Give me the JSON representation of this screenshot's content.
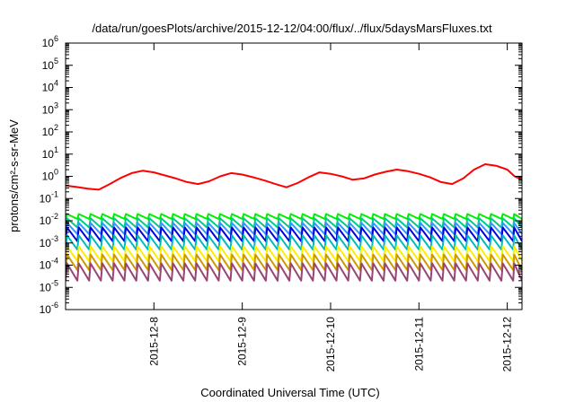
{
  "chart_data": {
    "type": "line",
    "title": "/data/run/goesPlots/archive/2015-12-12/04:00/flux/../flux/5daysMarsFluxes.txt",
    "xlabel": "Coordinated Universal Time (UTC)",
    "ylabel": "protons/cm²-s-sr-MeV",
    "y_scale": "log",
    "ylim": [
      1e-06,
      1000000.0
    ],
    "x_range": [
      "2015-12-07 00:00",
      "2015-12-12 04:00"
    ],
    "y_ticks": [
      {
        "value": 1e-06,
        "base": "10",
        "exp": "-6"
      },
      {
        "value": 1e-05,
        "base": "10",
        "exp": "-5"
      },
      {
        "value": 0.0001,
        "base": "10",
        "exp": "-4"
      },
      {
        "value": 0.001,
        "base": "10",
        "exp": "-3"
      },
      {
        "value": 0.01,
        "base": "10",
        "exp": "-2"
      },
      {
        "value": 0.1,
        "base": "10",
        "exp": "-1"
      },
      {
        "value": 1.0,
        "base": "10",
        "exp": "0"
      },
      {
        "value": 10.0,
        "base": "10",
        "exp": "1"
      },
      {
        "value": 100.0,
        "base": "10",
        "exp": "2"
      },
      {
        "value": 1000.0,
        "base": "10",
        "exp": "3"
      },
      {
        "value": 10000.0,
        "base": "10",
        "exp": "4"
      },
      {
        "value": 100000.0,
        "base": "10",
        "exp": "5"
      },
      {
        "value": 1000000.0,
        "base": "10",
        "exp": "6"
      }
    ],
    "x_ticks": [
      {
        "value": "2015-12-08 00:00",
        "label": "2015-12-8"
      },
      {
        "value": "2015-12-09 00:00",
        "label": "2015-12-9"
      },
      {
        "value": "2015-12-10 00:00",
        "label": "2015-12-10"
      },
      {
        "value": "2015-12-11 00:00",
        "label": "2015-12-11"
      },
      {
        "value": "2015-12-12 00:00",
        "label": "2015-12-12"
      }
    ],
    "grid": false,
    "legend": "none",
    "series": [
      {
        "color": "#ff0000",
        "width": 2,
        "points": [
          [
            "2015-12-07 00:00",
            0.38
          ],
          [
            "2015-12-07 03:00",
            0.33
          ],
          [
            "2015-12-07 06:00",
            0.28
          ],
          [
            "2015-12-07 09:00",
            0.25
          ],
          [
            "2015-12-07 12:00",
            0.45
          ],
          [
            "2015-12-07 15:00",
            0.85
          ],
          [
            "2015-12-07 18:00",
            1.4
          ],
          [
            "2015-12-07 21:00",
            1.8
          ],
          [
            "2015-12-08 00:00",
            1.5
          ],
          [
            "2015-12-08 03:00",
            1.1
          ],
          [
            "2015-12-08 06:00",
            0.8
          ],
          [
            "2015-12-08 09:00",
            0.55
          ],
          [
            "2015-12-08 12:00",
            0.45
          ],
          [
            "2015-12-08 15:00",
            0.6
          ],
          [
            "2015-12-08 18:00",
            1.0
          ],
          [
            "2015-12-08 21:00",
            1.4
          ],
          [
            "2015-12-09 00:00",
            1.2
          ],
          [
            "2015-12-09 03:00",
            0.9
          ],
          [
            "2015-12-09 06:00",
            0.65
          ],
          [
            "2015-12-09 09:00",
            0.45
          ],
          [
            "2015-12-09 12:00",
            0.32
          ],
          [
            "2015-12-09 15:00",
            0.5
          ],
          [
            "2015-12-09 18:00",
            0.9
          ],
          [
            "2015-12-09 21:00",
            1.5
          ],
          [
            "2015-12-10 00:00",
            1.3
          ],
          [
            "2015-12-10 03:00",
            1.0
          ],
          [
            "2015-12-10 06:00",
            0.7
          ],
          [
            "2015-12-10 09:00",
            0.8
          ],
          [
            "2015-12-10 12:00",
            1.2
          ],
          [
            "2015-12-10 15:00",
            1.6
          ],
          [
            "2015-12-10 18:00",
            2.0
          ],
          [
            "2015-12-10 21:00",
            1.7
          ],
          [
            "2015-12-11 00:00",
            1.3
          ],
          [
            "2015-12-11 03:00",
            0.9
          ],
          [
            "2015-12-11 06:00",
            0.55
          ],
          [
            "2015-12-11 09:00",
            0.45
          ],
          [
            "2015-12-11 12:00",
            0.8
          ],
          [
            "2015-12-11 15:00",
            2.0
          ],
          [
            "2015-12-11 18:00",
            3.5
          ],
          [
            "2015-12-11 21:00",
            3.0
          ],
          [
            "2015-12-12 00:00",
            2.0
          ],
          [
            "2015-12-12 02:00",
            1.0
          ],
          [
            "2015-12-12 04:00",
            0.7
          ]
        ]
      },
      {
        "color": "#00ee00",
        "width": 2,
        "period_hours": 3.2,
        "peak": 0.02,
        "trough": 0.012,
        "start": "2015-12-07 00:00",
        "end": "2015-12-12 04:00"
      },
      {
        "color": "#00cc88",
        "width": 2,
        "period_hours": 3.2,
        "peak": 0.013,
        "trough": 0.005,
        "start": "2015-12-07 00:00",
        "end": "2015-12-12 04:00"
      },
      {
        "color": "#3399ff",
        "width": 2,
        "period_hours": 3.2,
        "peak": 0.008,
        "trough": 0.0025,
        "start": "2015-12-07 00:00",
        "end": "2015-12-12 04:00"
      },
      {
        "color": "#0000dd",
        "width": 2,
        "period_hours": 3.2,
        "peak": 0.005,
        "trough": 0.0012,
        "start": "2015-12-07 00:00",
        "end": "2015-12-12 04:00"
      },
      {
        "color": "#00bbbb",
        "width": 2,
        "period_hours": 3.2,
        "peak": 0.0022,
        "trough": 0.0005,
        "start": "2015-12-07 00:00",
        "end": "2015-12-12 04:00"
      },
      {
        "color": "#ffee00",
        "width": 2,
        "period_hours": 3.2,
        "peak": 0.0007,
        "trough": 0.00015,
        "start": "2015-12-07 00:00",
        "end": "2015-12-12 04:00"
      },
      {
        "color": "#cc9900",
        "width": 2,
        "period_hours": 3.2,
        "peak": 0.0003,
        "trough": 6e-05,
        "start": "2015-12-07 00:00",
        "end": "2015-12-12 04:00"
      },
      {
        "color": "#994477",
        "width": 2,
        "period_hours": 3.2,
        "peak": 0.00012,
        "trough": 2e-05,
        "start": "2015-12-07 00:00",
        "end": "2015-12-12 04:00"
      }
    ]
  }
}
